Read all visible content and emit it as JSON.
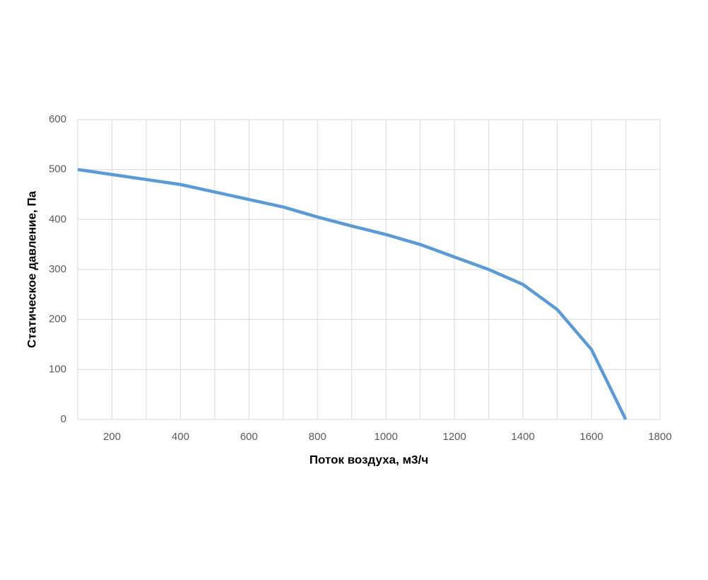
{
  "chart_data": {
    "type": "line",
    "xlabel": "Поток воздуха, м3/ч",
    "ylabel": "Статическое давление, Па",
    "x": [
      100,
      200,
      300,
      400,
      500,
      600,
      700,
      800,
      900,
      1000,
      1100,
      1200,
      1300,
      1400,
      1500,
      1600,
      1700
    ],
    "series": [
      {
        "color": "#5b9bd5",
        "values": [
          500,
          490,
          480,
          470,
          455,
          440,
          425,
          405,
          387,
          370,
          350,
          325,
          300,
          270,
          220,
          140,
          0
        ]
      }
    ],
    "xlim": [
      100,
      1800
    ],
    "xticks": [
      200,
      400,
      600,
      800,
      1000,
      1200,
      1400,
      1600,
      1800
    ],
    "x_minor_ticks": [
      300,
      500,
      700,
      900,
      1100,
      1300,
      1500,
      1700
    ],
    "ylim": [
      0,
      600
    ],
    "yticks": [
      0,
      100,
      200,
      300,
      400,
      500,
      600
    ],
    "grid": true
  }
}
